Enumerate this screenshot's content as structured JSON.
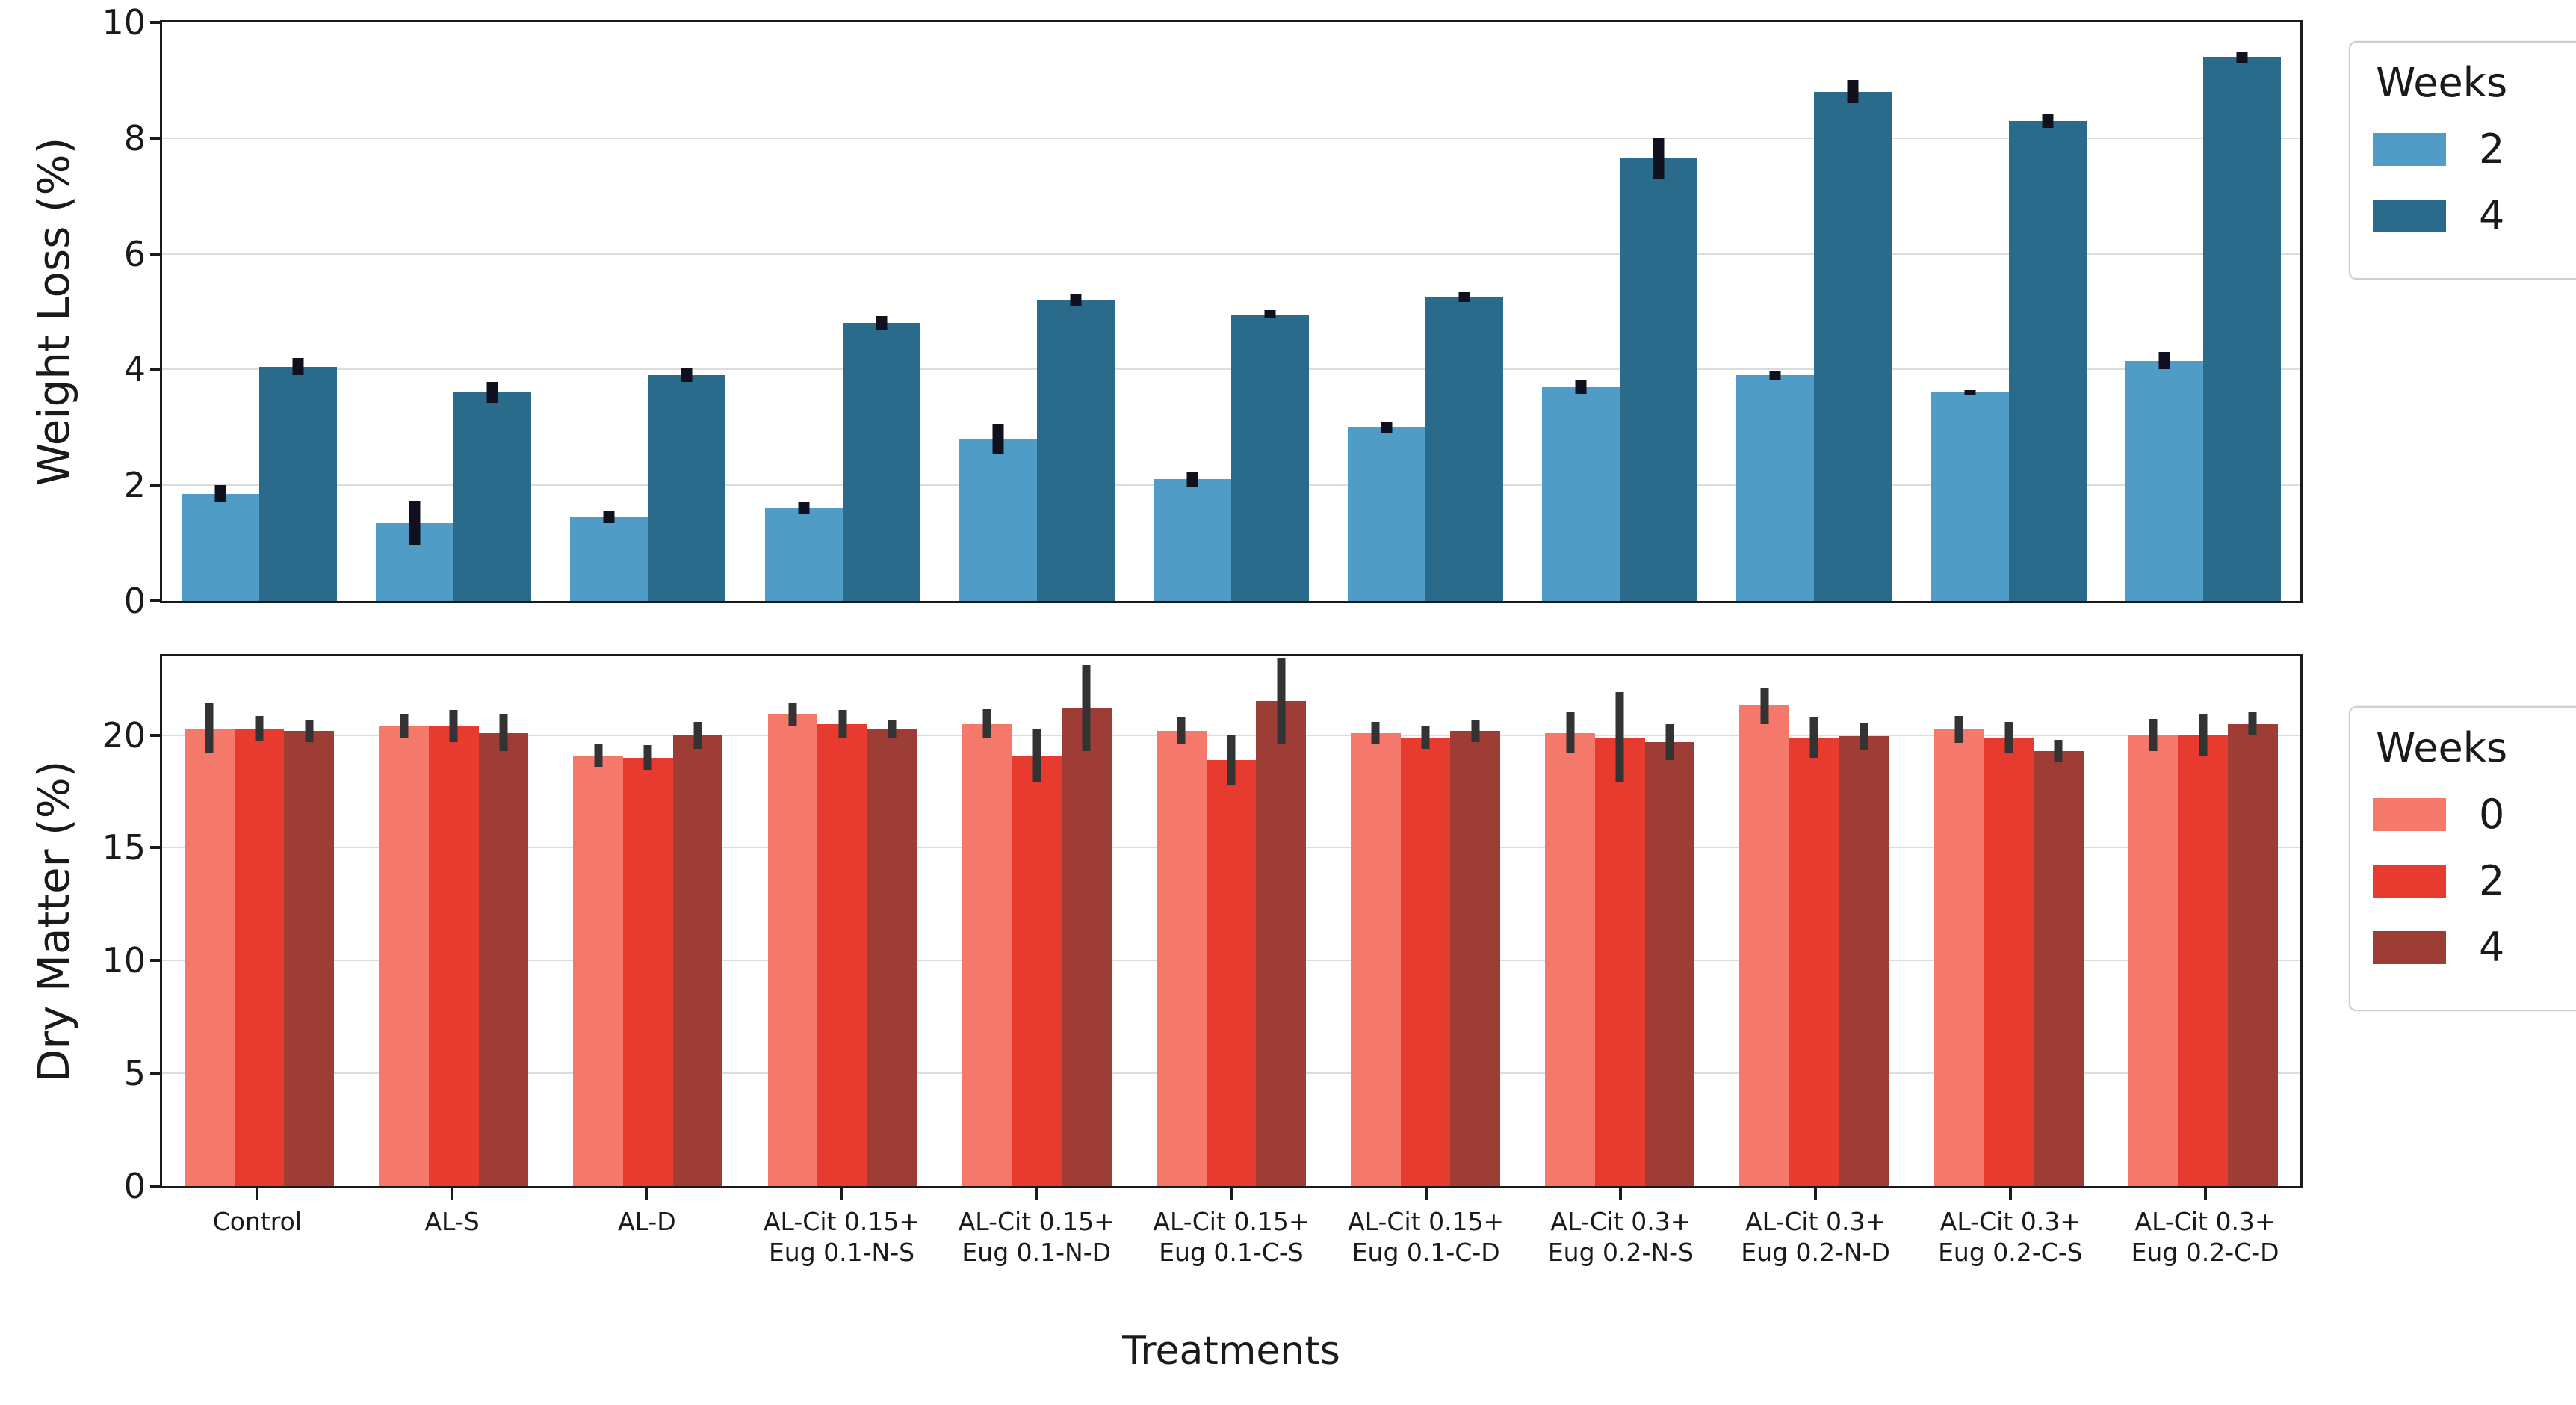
{
  "figure": {
    "xlabel": "Treatments",
    "background": "#ffffff"
  },
  "chart_data": [
    {
      "type": "bar",
      "panel": "top",
      "title": "",
      "xlabel": "",
      "ylabel": "Weight Loss (%)",
      "ylim": [
        0,
        10
      ],
      "yticks": [
        0,
        2,
        4,
        6,
        8,
        10
      ],
      "grid": "horizontal",
      "legend": {
        "title": "Weeks",
        "position": "upper right, outside plot"
      },
      "categories": [
        "Control",
        "AL-S",
        "AL-D",
        "AL-Cit 0.15+\nEug 0.1-N-S",
        "AL-Cit 0.15+\nEug 0.1-N-D",
        "AL-Cit 0.15+\nEug 0.1-C-S",
        "AL-Cit 0.15+\nEug 0.1-C-D",
        "AL-Cit 0.3+\nEug 0.2-N-S",
        "AL-Cit 0.3+\nEug 0.2-N-D",
        "AL-Cit 0.3+\nEug 0.2-C-S",
        "AL-Cit 0.3+\nEug 0.2-C-D"
      ],
      "series": [
        {
          "name": "2",
          "color": "#4f9cc7",
          "values": [
            1.85,
            1.35,
            1.45,
            1.6,
            2.8,
            2.1,
            3.0,
            3.7,
            3.9,
            3.6,
            4.15
          ],
          "errors": [
            0.15,
            0.38,
            0.1,
            0.1,
            0.25,
            0.12,
            0.1,
            0.12,
            0.08,
            0.05,
            0.15
          ]
        },
        {
          "name": "4",
          "color": "#2a6b8c",
          "values": [
            4.05,
            3.6,
            3.9,
            4.8,
            5.2,
            4.95,
            5.25,
            7.65,
            8.8,
            8.3,
            9.4
          ],
          "errors": [
            0.15,
            0.18,
            0.12,
            0.12,
            0.1,
            0.07,
            0.08,
            0.35,
            0.2,
            0.12,
            0.1
          ]
        }
      ],
      "error_bar_color": "#10101f"
    },
    {
      "type": "bar",
      "panel": "bottom",
      "title": "",
      "xlabel": "Treatments",
      "ylabel": "Dry Matter (%)",
      "ylim": [
        0,
        23.5
      ],
      "yticks": [
        0,
        5,
        10,
        15,
        20
      ],
      "grid": "horizontal",
      "legend": {
        "title": "Weeks",
        "position": "upper right, outside plot"
      },
      "categories": [
        "Control",
        "AL-S",
        "AL-D",
        "AL-Cit 0.15+\nEug 0.1-N-S",
        "AL-Cit 0.15+\nEug 0.1-N-D",
        "AL-Cit 0.15+\nEug 0.1-C-S",
        "AL-Cit 0.15+\nEug 0.1-C-D",
        "AL-Cit 0.3+\nEug 0.2-N-S",
        "AL-Cit 0.3+\nEug 0.2-N-D",
        "AL-Cit 0.3+\nEug 0.2-C-S",
        "AL-Cit 0.3+\nEug 0.2-C-D"
      ],
      "series": [
        {
          "name": "0",
          "color": "#f4796a",
          "values": [
            20.3,
            20.4,
            19.1,
            20.9,
            20.5,
            20.2,
            20.1,
            20.1,
            21.3,
            20.25,
            20.0
          ],
          "errors": [
            1.1,
            0.5,
            0.5,
            0.5,
            0.65,
            0.6,
            0.5,
            0.9,
            0.8,
            0.6,
            0.7
          ]
        },
        {
          "name": "2",
          "color": "#e73b2f",
          "values": [
            20.3,
            20.4,
            19.0,
            20.5,
            19.1,
            18.9,
            19.9,
            19.9,
            19.9,
            19.9,
            20.0
          ],
          "errors": [
            0.55,
            0.7,
            0.55,
            0.6,
            1.2,
            1.1,
            0.5,
            2.0,
            0.9,
            0.7,
            0.9
          ]
        },
        {
          "name": "4",
          "color": "#9e3d35",
          "values": [
            20.2,
            20.1,
            20.0,
            20.25,
            21.2,
            21.5,
            20.2,
            19.7,
            19.95,
            19.3,
            20.5
          ],
          "errors": [
            0.5,
            0.8,
            0.6,
            0.4,
            1.9,
            1.9,
            0.5,
            0.8,
            0.6,
            0.5,
            0.5
          ]
        }
      ],
      "error_bar_color": "#333333"
    }
  ]
}
